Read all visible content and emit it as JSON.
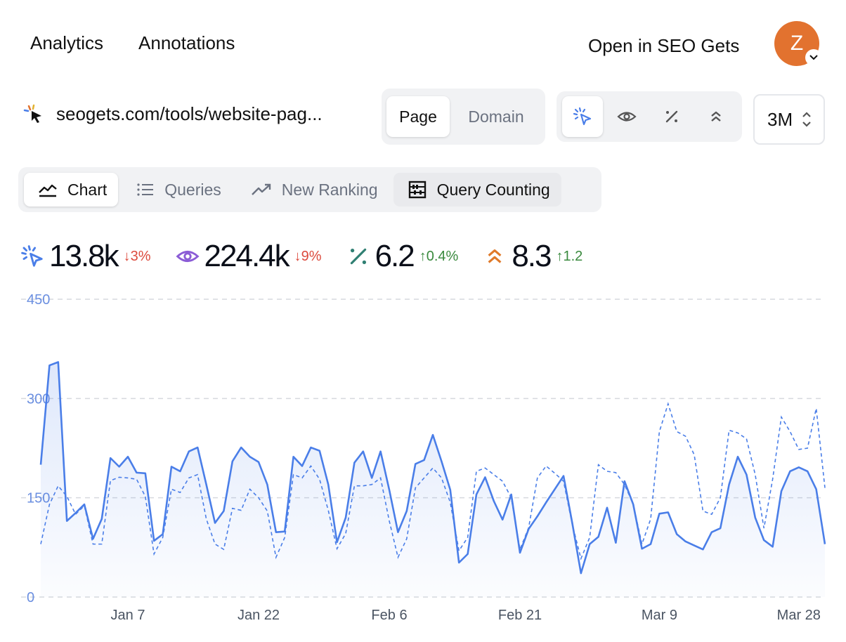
{
  "nav": {
    "analytics": "Analytics",
    "annotations": "Annotations",
    "open_seo": "Open in SEO Gets"
  },
  "user": {
    "initial": "Z",
    "avatar_color": "#e2722f"
  },
  "page": {
    "url": "seogets.com/tools/website-pag..."
  },
  "scope": {
    "page": "Page",
    "domain": "Domain",
    "selected": "Page"
  },
  "metric_toggles": [
    "cursor-click-icon",
    "eye-icon",
    "percent-icon",
    "chevrons-up-icon"
  ],
  "range": {
    "value": "3M"
  },
  "tabs": [
    {
      "label": "Chart",
      "icon": "line-chart-icon"
    },
    {
      "label": "Queries",
      "icon": "list-icon"
    },
    {
      "label": "New Ranking",
      "icon": "trending-up-icon"
    },
    {
      "label": "Query Counting",
      "icon": "abacus-icon"
    }
  ],
  "metrics": {
    "clicks": {
      "value": "13.8k",
      "delta": "↓3%",
      "color": "#4a7ee8"
    },
    "impressions": {
      "value": "224.4k",
      "delta": "↓9%",
      "color": "#8b5cd6"
    },
    "ctr": {
      "value": "6.2",
      "delta": "↑0.4%",
      "color": "#2f7f72"
    },
    "position": {
      "value": "8.3",
      "delta": "↑1.2",
      "color": "#e07a2a"
    }
  },
  "chart_data": {
    "type": "line",
    "ylim": [
      0,
      450
    ],
    "yticks": [
      0,
      150,
      300,
      450
    ],
    "xticks": [
      "Jan 7",
      "Jan 22",
      "Feb 6",
      "Feb 21",
      "Mar 9",
      "Mar 28"
    ],
    "xtick_index": [
      10,
      25,
      40,
      55,
      71,
      87
    ],
    "series": [
      {
        "style": "solid-filled",
        "color": "#4a7ee8",
        "values": [
          200,
          350,
          355,
          115,
          127,
          140,
          88,
          118,
          210,
          197,
          212,
          188,
          187,
          85,
          95,
          197,
          190,
          220,
          226,
          170,
          112,
          130,
          205,
          226,
          212,
          204,
          170,
          98,
          99,
          212,
          198,
          226,
          221,
          170,
          83,
          120,
          203,
          220,
          180,
          220,
          162,
          98,
          130,
          201,
          207,
          245,
          205,
          162,
          52,
          65,
          155,
          181,
          145,
          117,
          155,
          67,
          103,
          122,
          143,
          163,
          183,
          112,
          36,
          80,
          91,
          135,
          82,
          175,
          140,
          73,
          80,
          126,
          128,
          95,
          84,
          78,
          72,
          98,
          104,
          170,
          212,
          185,
          120,
          86,
          76,
          160,
          190,
          196,
          190,
          163,
          80
        ],
        "xy_note": "daily clicks"
      },
      {
        "style": "dashed",
        "color": "#4a7ee8",
        "values": [
          80,
          140,
          168,
          152,
          125,
          138,
          80,
          80,
          176,
          181,
          180,
          178,
          152,
          65,
          90,
          163,
          158,
          180,
          185,
          118,
          80,
          72,
          134,
          131,
          163,
          150,
          130,
          60,
          90,
          185,
          180,
          198,
          178,
          131,
          73,
          96,
          168,
          168,
          170,
          180,
          115,
          60,
          88,
          165,
          180,
          195,
          180,
          143,
          70,
          90,
          190,
          195,
          185,
          175,
          150,
          72,
          105,
          180,
          198,
          187,
          175,
          110,
          58,
          90,
          200,
          190,
          188,
          170,
          140,
          80,
          118,
          250,
          292,
          250,
          243,
          215,
          130,
          125,
          150,
          252,
          248,
          239,
          185,
          104,
          178,
          272,
          250,
          223,
          225,
          285,
          165
        ],
        "xy_note": "daily impressions (rescaled)"
      }
    ]
  }
}
